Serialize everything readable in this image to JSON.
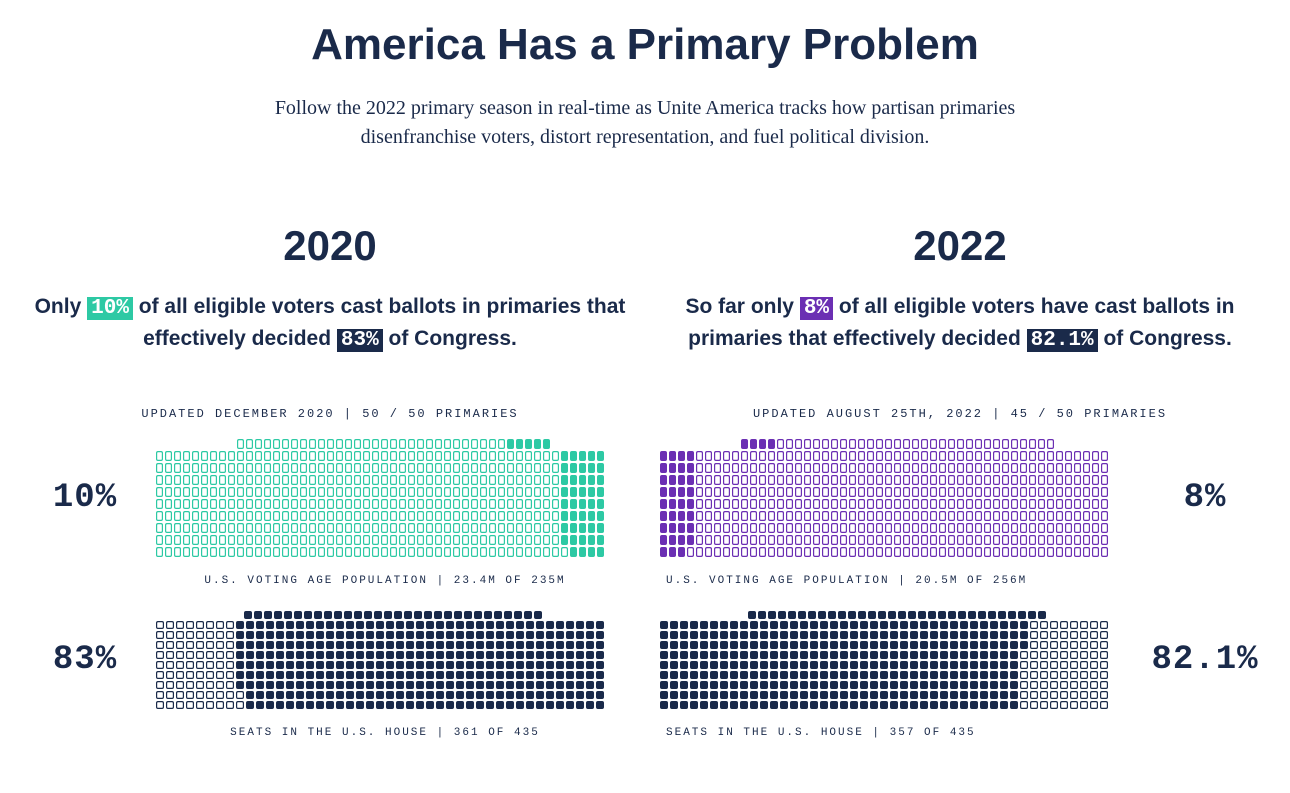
{
  "title": "America Has a Primary Problem",
  "subtitle": "Follow the 2022 primary season in real-time as Unite America tracks how partisan primaries disenfranchise voters, distort representation, and fuel political division.",
  "colors": {
    "text": "#1a2a4a",
    "navy_fill": "#1a2a4a",
    "navy_outline": "#1a2a4a",
    "teal_fill": "#2dc9a4",
    "teal_outline": "#2dc9a4",
    "purple_fill": "#6b2fb3",
    "purple_outline": "#6b2fb3",
    "background": "#ffffff"
  },
  "waffle_style": {
    "rows": 10,
    "first_row_cols_voters": 35,
    "full_row_cols_voters": 50,
    "cell_w_voters": 7,
    "cell_h_voters": 10,
    "first_row_cols_seats": 30,
    "full_row_cols_seats": 45,
    "cell_w_seats": 8,
    "cell_h_seats": 8,
    "border_w": 1.2,
    "border_radius": 2
  },
  "left": {
    "year": "2020",
    "statement_pre": "Only ",
    "hl1": "10%",
    "hl1_bg": "#2dc9a4",
    "statement_mid": " of all eligible voters cast ballots in primaries that effectively decided ",
    "hl2": "83%",
    "hl2_bg": "#1a2a4a",
    "statement_post": " of Congress.",
    "meta": "UPDATED DECEMBER 2020 | 50 / 50 PRIMARIES",
    "voters": {
      "pct_label": "10%",
      "filled": 49,
      "total": 485,
      "fill_side": "right",
      "fill_color": "#2dc9a4",
      "outline_color": "#2dc9a4",
      "caption": "U.S. VOTING AGE POPULATION | 23.4M OF 235M"
    },
    "seats": {
      "pct_label": "83%",
      "filled": 361,
      "total": 435,
      "fill_side": "right",
      "fill_color": "#1a2a4a",
      "outline_color": "#1a2a4a",
      "caption": "SEATS IN THE U.S. HOUSE | 361 OF 435"
    },
    "pct_side": "left"
  },
  "right": {
    "year": "2022",
    "statement_pre": "So far only ",
    "hl1": "8%",
    "hl1_bg": "#6b2fb3",
    "statement_mid": " of all eligible voters have cast ballots in primaries that effectively decided ",
    "hl2": "82.1%",
    "hl2_bg": "#1a2a4a",
    "statement_post": " of Congress.",
    "meta": "UPDATED AUGUST 25TH, 2022 | 45 / 50 PRIMARIES",
    "voters": {
      "pct_label": "8%",
      "filled": 39,
      "total": 485,
      "fill_side": "left",
      "fill_color": "#6b2fb3",
      "outline_color": "#6b2fb3",
      "caption": "U.S. VOTING AGE POPULATION | 20.5M OF 256M"
    },
    "seats": {
      "pct_label": "82.1%",
      "filled": 357,
      "total": 435,
      "fill_side": "left",
      "fill_color": "#1a2a4a",
      "outline_color": "#1a2a4a",
      "caption": "SEATS IN THE U.S. HOUSE | 357 OF 435"
    },
    "pct_side": "right"
  }
}
